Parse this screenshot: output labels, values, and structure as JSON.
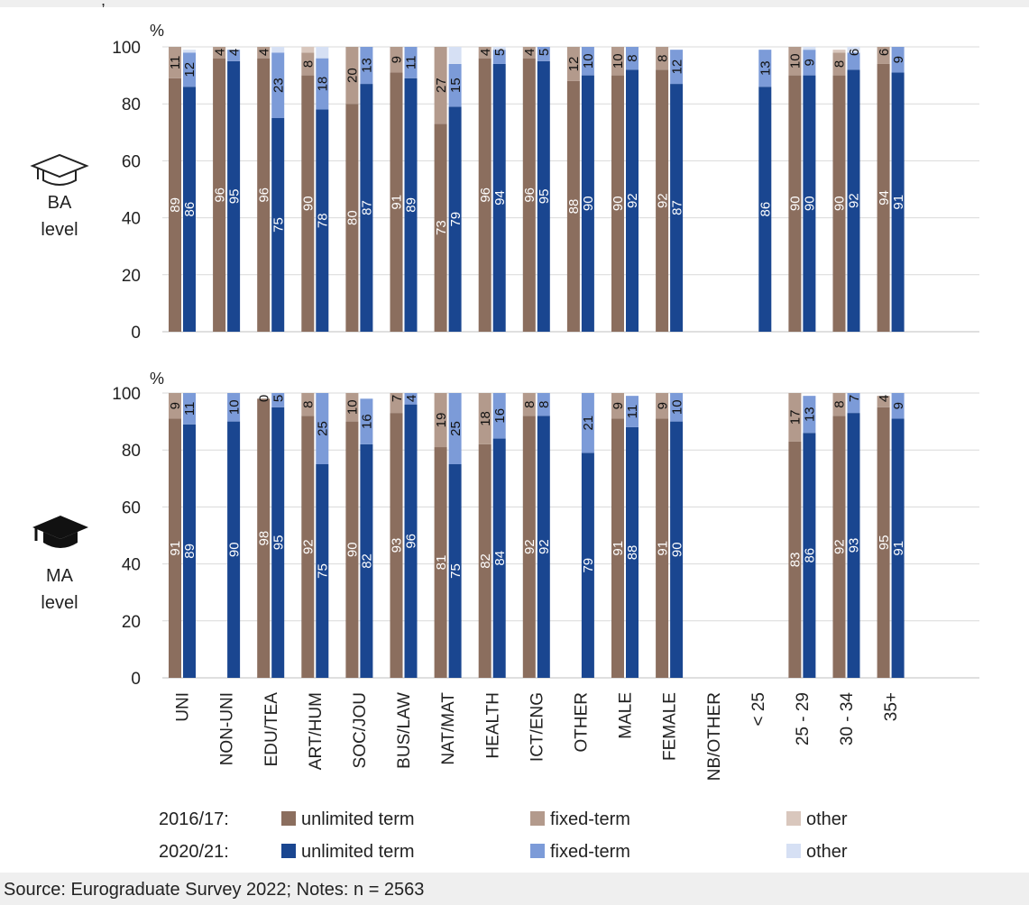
{
  "top_clipped_text": ",",
  "source_note": "Source: Eurograduate Survey 2022; Notes: n = 2563",
  "panels_labels": {
    "ba": [
      "BA",
      "level"
    ],
    "ma": [
      "MA",
      "level"
    ],
    "unit": "%"
  },
  "legend": {
    "rows": [
      {
        "label": "2016/17:",
        "items": [
          {
            "name": "unlimited term",
            "color": "#8b6e5e"
          },
          {
            "name": "fixed-term",
            "color": "#b39a8c"
          },
          {
            "name": "other",
            "color": "#d9c7bd"
          }
        ]
      },
      {
        "label": "2020/21:",
        "items": [
          {
            "name": "unlimited term",
            "color": "#1a4690"
          },
          {
            "name": "fixed-term",
            "color": "#7c9bd8"
          },
          {
            "name": "other",
            "color": "#d6e0f4"
          }
        ]
      }
    ]
  },
  "colors": {
    "y16_unlimited": "#8b6e5e",
    "y16_fixed": "#b39a8c",
    "y16_other": "#d9c7bd",
    "y20_unlimited": "#1a4690",
    "y20_fixed": "#7c9bd8",
    "y20_other": "#d6e0f4"
  },
  "chart_data": {
    "type": "bar",
    "stacked": true,
    "categories": [
      "UNI",
      "NON-UNI",
      "EDU/TEA",
      "ART/HUM",
      "SOC/JOU",
      "BUS/LAW",
      "NAT/MAT",
      "HEALTH",
      "ICT/ENG",
      "OTHER",
      "MALE",
      "FEMALE",
      "NB/OTHER",
      "< 25",
      "25 - 29",
      "30 - 34",
      "35+"
    ],
    "category_groups": [
      [
        0,
        1
      ],
      [
        2,
        3,
        4,
        5,
        6,
        7,
        8,
        9
      ],
      [
        10,
        11,
        12
      ],
      [
        13,
        14,
        15,
        16
      ]
    ],
    "ylim": [
      0,
      100
    ],
    "yticks": [
      0,
      20,
      40,
      60,
      80,
      100
    ],
    "ylabel": "%",
    "panels": [
      {
        "name": "BA level",
        "bars": [
          [
            {
              "u": 89,
              "f": 11,
              "o": 0
            },
            {
              "u": 86,
              "f": 12,
              "o": 1
            }
          ],
          [
            {
              "u": 96,
              "f": 4,
              "o": 0
            },
            {
              "u": 95,
              "f": 4,
              "o": 0
            }
          ],
          [
            {
              "u": 96,
              "f": 4,
              "o": 0
            },
            {
              "u": 75,
              "f": 23,
              "o": 2
            }
          ],
          [
            {
              "u": 90,
              "f": 8,
              "o": 2
            },
            {
              "u": 78,
              "f": 18,
              "o": 5
            }
          ],
          [
            {
              "u": 80,
              "f": 20,
              "o": 0
            },
            {
              "u": 87,
              "f": 13,
              "o": 0
            }
          ],
          [
            {
              "u": 91,
              "f": 9,
              "o": 0
            },
            {
              "u": 89,
              "f": 11,
              "o": 0
            }
          ],
          [
            {
              "u": 73,
              "f": 27,
              "o": 0
            },
            {
              "u": 79,
              "f": 15,
              "o": 6
            }
          ],
          [
            {
              "u": 96,
              "f": 4,
              "o": 0
            },
            {
              "u": 94,
              "f": 5,
              "o": 1
            }
          ],
          [
            {
              "u": 96,
              "f": 4,
              "o": 0
            },
            {
              "u": 95,
              "f": 5,
              "o": 0
            }
          ],
          [
            {
              "u": 88,
              "f": 12,
              "o": 0
            },
            {
              "u": 90,
              "f": 10,
              "o": 0
            }
          ],
          [
            {
              "u": 90,
              "f": 10,
              "o": 0
            },
            {
              "u": 92,
              "f": 8,
              "o": 0
            }
          ],
          [
            {
              "u": 92,
              "f": 8,
              "o": 0
            },
            {
              "u": 87,
              "f": 12,
              "o": 0
            }
          ],
          [
            null,
            null
          ],
          [
            null,
            {
              "u": 86,
              "f": 13,
              "o": 0
            }
          ],
          [
            {
              "u": 90,
              "f": 10,
              "o": 0
            },
            {
              "u": 90,
              "f": 9,
              "o": 1
            }
          ],
          [
            {
              "u": 90,
              "f": 8,
              "o": 1
            },
            {
              "u": 92,
              "f": 6,
              "o": 2
            }
          ],
          [
            {
              "u": 94,
              "f": 6,
              "o": 0
            },
            {
              "u": 91,
              "f": 9,
              "o": 0
            }
          ]
        ]
      },
      {
        "name": "MA level",
        "bars": [
          [
            {
              "u": 91,
              "f": 9,
              "o": 0
            },
            {
              "u": 89,
              "f": 11,
              "o": 0
            }
          ],
          [
            null,
            {
              "u": 90,
              "f": 10,
              "o": 0
            }
          ],
          [
            {
              "u": 98,
              "f": 0,
              "o": 0
            },
            {
              "u": 95,
              "f": 5,
              "o": 0
            }
          ],
          [
            {
              "u": 92,
              "f": 8,
              "o": 0
            },
            {
              "u": 75,
              "f": 25,
              "o": 0
            }
          ],
          [
            {
              "u": 90,
              "f": 10,
              "o": 0
            },
            {
              "u": 82,
              "f": 16,
              "o": 0
            }
          ],
          [
            {
              "u": 93,
              "f": 7,
              "o": 0
            },
            {
              "u": 96,
              "f": 4,
              "o": 0
            }
          ],
          [
            {
              "u": 81,
              "f": 19,
              "o": 0
            },
            {
              "u": 75,
              "f": 25,
              "o": 0
            }
          ],
          [
            {
              "u": 82,
              "f": 18,
              "o": 0
            },
            {
              "u": 84,
              "f": 16,
              "o": 0
            }
          ],
          [
            {
              "u": 92,
              "f": 8,
              "o": 0
            },
            {
              "u": 92,
              "f": 8,
              "o": 0
            }
          ],
          [
            null,
            {
              "u": 79,
              "f": 21,
              "o": 0
            }
          ],
          [
            {
              "u": 91,
              "f": 9,
              "o": 0
            },
            {
              "u": 88,
              "f": 11,
              "o": 0
            }
          ],
          [
            {
              "u": 91,
              "f": 9,
              "o": 0
            },
            {
              "u": 90,
              "f": 10,
              "o": 0
            }
          ],
          [
            null,
            null
          ],
          [
            null,
            null
          ],
          [
            {
              "u": 83,
              "f": 17,
              "o": 0
            },
            {
              "u": 86,
              "f": 13,
              "o": 0
            }
          ],
          [
            {
              "u": 92,
              "f": 8,
              "o": 0
            },
            {
              "u": 93,
              "f": 7,
              "o": 0
            }
          ],
          [
            {
              "u": 95,
              "f": 4,
              "o": 0
            },
            {
              "u": 91,
              "f": 9,
              "o": 0
            }
          ]
        ]
      }
    ],
    "legend_position": "bottom"
  }
}
